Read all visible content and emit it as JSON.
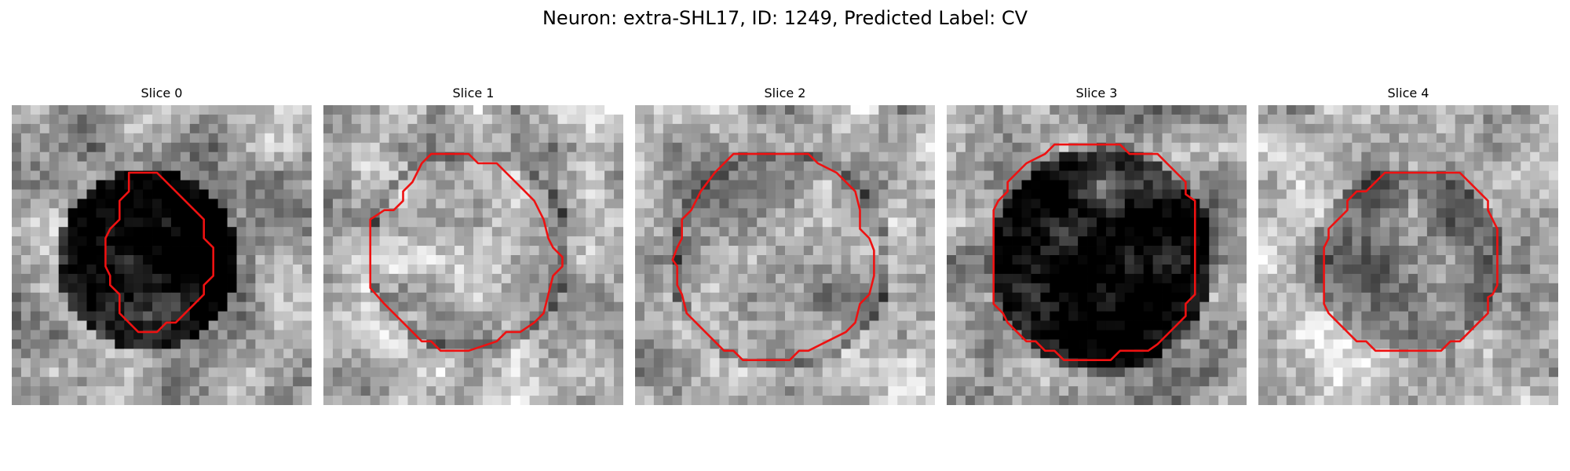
{
  "figure": {
    "title": "Neuron: extra-SHL17, ID: 1249, Predicted Label: CV"
  },
  "contour_color": "#ee1111",
  "slices": [
    {
      "label": "Slice 0",
      "tone": "dark-blob",
      "interior": "dark"
    },
    {
      "label": "Slice 1",
      "tone": "light-cell",
      "interior": "light"
    },
    {
      "label": "Slice 2",
      "tone": "mid-cell",
      "interior": "mixed"
    },
    {
      "label": "Slice 3",
      "tone": "black-core",
      "interior": "black"
    },
    {
      "label": "Slice 4",
      "tone": "gray-cell",
      "interior": "gray"
    }
  ]
}
